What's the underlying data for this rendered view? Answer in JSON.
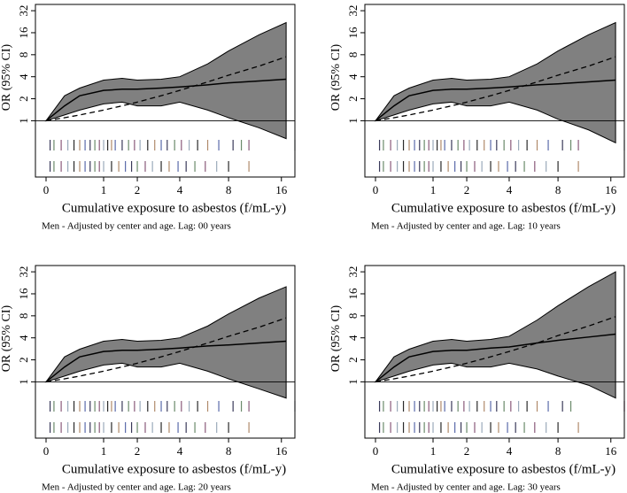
{
  "chart_data": [
    {
      "type": "spline",
      "title": "Men - Adjusted by center and age. Lag: 00 years",
      "xlabel": "Cumulative exposure to asbestos (f/mL-y)",
      "ylabel": "OR (95% CI)",
      "xscale": "log1p",
      "yscale": "log2",
      "xlim": [
        -0.12,
        19
      ],
      "ylim": [
        0.17,
        39
      ],
      "xticks": [
        0,
        1,
        2,
        4,
        8,
        16
      ],
      "yticks": [
        1,
        2,
        4,
        8,
        16,
        32
      ],
      "reference": 1,
      "x": [
        0,
        0.25,
        0.5,
        1,
        1.5,
        2,
        3,
        4,
        6,
        8,
        12,
        17
      ],
      "estimate": [
        1,
        1.6,
        2.2,
        2.6,
        2.7,
        2.7,
        2.8,
        2.9,
        3.1,
        3.3,
        3.5,
        3.7
      ],
      "ci_lower": [
        1,
        1.2,
        1.4,
        1.7,
        1.8,
        1.6,
        1.6,
        1.8,
        1.4,
        1.1,
        0.8,
        0.57
      ],
      "ci_upper": [
        1,
        2.2,
        2.8,
        3.6,
        3.8,
        3.6,
        3.7,
        4,
        6,
        9,
        15,
        22
      ],
      "linear": [
        1,
        1.1,
        1.2,
        1.4,
        1.6,
        1.8,
        2.2,
        2.6,
        3.4,
        4.2,
        5.6,
        7.5
      ],
      "rug": [
        [
          0.05,
          0.1,
          0.2,
          0.3,
          0.4,
          0.5,
          0.6,
          0.7,
          0.8,
          0.9,
          1,
          1.1,
          1.2,
          1.3,
          1.5,
          1.7,
          1.9,
          2.1,
          2.4,
          2.7,
          3,
          3.3,
          3.7,
          4.1,
          4.6,
          5.2,
          6,
          7,
          8.5,
          9.5,
          10.5,
          19
        ],
        [
          0.05,
          0.1,
          0.2,
          0.3,
          0.4,
          0.5,
          0.6,
          0.7,
          0.8,
          0.9,
          1,
          1.2,
          1.4,
          1.6,
          1.8,
          2,
          2.3,
          2.6,
          3,
          3.4,
          3.9,
          4.4,
          5,
          5.8,
          6.8,
          8,
          10.5
        ]
      ],
      "band_color": "#808080",
      "line_color": "#000000",
      "rug_colors": [
        "#3a3a5a",
        "#6a8a6a",
        "#8a5a7a",
        "#9aaaba",
        "#2a2a2a",
        "#b08a6a",
        "#5a6aaa"
      ]
    },
    {
      "type": "spline",
      "title": "Men - Adjusted by center and age. Lag: 10 years",
      "xlabel": "Cumulative exposure to asbestos (f/mL-y)",
      "ylabel": "OR (95% CI)",
      "xscale": "log1p",
      "yscale": "log2",
      "xlim": [
        -0.12,
        19
      ],
      "ylim": [
        0.17,
        39
      ],
      "xticks": [
        0,
        1,
        2,
        4,
        8,
        16
      ],
      "yticks": [
        1,
        2,
        4,
        8,
        16,
        32
      ],
      "reference": 1,
      "x": [
        0,
        0.25,
        0.5,
        1,
        1.5,
        2,
        3,
        4,
        6,
        8,
        12,
        17
      ],
      "estimate": [
        1,
        1.6,
        2.2,
        2.6,
        2.7,
        2.7,
        2.8,
        2.9,
        3.1,
        3.2,
        3.4,
        3.6
      ],
      "ci_lower": [
        1,
        1.2,
        1.4,
        1.7,
        1.8,
        1.6,
        1.6,
        1.8,
        1.4,
        1.05,
        0.75,
        0.5
      ],
      "ci_upper": [
        1,
        2.2,
        2.8,
        3.6,
        3.8,
        3.6,
        3.7,
        4,
        6,
        9,
        15,
        22
      ],
      "linear": [
        1,
        1.1,
        1.2,
        1.4,
        1.6,
        1.8,
        2.2,
        2.6,
        3.4,
        4.2,
        5.6,
        7.5
      ],
      "rug": [
        [
          0.05,
          0.1,
          0.2,
          0.3,
          0.4,
          0.5,
          0.6,
          0.7,
          0.8,
          0.9,
          1,
          1.1,
          1.2,
          1.3,
          1.5,
          1.7,
          1.9,
          2.1,
          2.4,
          2.7,
          3,
          3.3,
          3.7,
          4.1,
          4.6,
          5.2,
          6,
          7,
          8.5,
          9.5,
          10.5,
          19
        ],
        [
          0.05,
          0.1,
          0.2,
          0.3,
          0.4,
          0.5,
          0.6,
          0.7,
          0.8,
          0.9,
          1,
          1.2,
          1.4,
          1.6,
          1.8,
          2,
          2.3,
          2.6,
          3,
          3.4,
          3.9,
          4.4,
          5,
          5.8,
          6.8,
          8,
          10.5
        ]
      ],
      "band_color": "#808080",
      "line_color": "#000000",
      "rug_colors": [
        "#3a3a5a",
        "#6a8a6a",
        "#8a5a7a",
        "#9aaaba",
        "#2a2a2a",
        "#b08a6a",
        "#5a6aaa"
      ]
    },
    {
      "type": "spline",
      "title": "Men - Adjusted by center and age. Lag: 20 years",
      "xlabel": "Cumulative exposure to asbestos (f/mL-y)",
      "ylabel": "OR (95% CI)",
      "xscale": "log1p",
      "yscale": "log2",
      "xlim": [
        -0.12,
        19
      ],
      "ylim": [
        0.17,
        39
      ],
      "xticks": [
        0,
        1,
        2,
        4,
        8,
        16
      ],
      "yticks": [
        1,
        2,
        4,
        8,
        16,
        32
      ],
      "reference": 1,
      "x": [
        0,
        0.25,
        0.5,
        1,
        1.5,
        2,
        3,
        4,
        6,
        8,
        12,
        17
      ],
      "estimate": [
        1,
        1.6,
        2.2,
        2.6,
        2.7,
        2.7,
        2.8,
        2.9,
        3.1,
        3.2,
        3.4,
        3.6
      ],
      "ci_lower": [
        1,
        1.2,
        1.4,
        1.7,
        1.8,
        1.6,
        1.6,
        1.8,
        1.4,
        1.1,
        0.8,
        0.6
      ],
      "ci_upper": [
        1,
        2.2,
        2.8,
        3.6,
        3.8,
        3.6,
        3.7,
        4,
        5.8,
        8.5,
        14,
        20
      ],
      "linear": [
        1,
        1.1,
        1.2,
        1.4,
        1.6,
        1.8,
        2.2,
        2.6,
        3.4,
        4.2,
        5.6,
        7.5
      ],
      "rug": [
        [
          0.05,
          0.1,
          0.2,
          0.3,
          0.4,
          0.5,
          0.6,
          0.7,
          0.8,
          0.9,
          1,
          1.1,
          1.2,
          1.3,
          1.5,
          1.7,
          1.9,
          2.1,
          2.4,
          2.7,
          3,
          3.3,
          3.7,
          4.1,
          4.6,
          5.2,
          6,
          7,
          8.5,
          9.5,
          10.5,
          19
        ],
        [
          0.05,
          0.1,
          0.2,
          0.3,
          0.4,
          0.5,
          0.6,
          0.7,
          0.8,
          0.9,
          1,
          1.2,
          1.4,
          1.6,
          1.8,
          2,
          2.3,
          2.6,
          3,
          3.4,
          3.9,
          4.4,
          5,
          5.8,
          6.8,
          8,
          10.5
        ]
      ],
      "band_color": "#808080",
      "line_color": "#000000",
      "rug_colors": [
        "#3a3a5a",
        "#6a8a6a",
        "#8a5a7a",
        "#9aaaba",
        "#2a2a2a",
        "#b08a6a",
        "#5a6aaa"
      ]
    },
    {
      "type": "spline",
      "title": "Men - Adjusted by center and age. Lag: 30 years",
      "xlabel": "Cumulative exposure to asbestos (f/mL-y)",
      "ylabel": "OR (95% CI)",
      "xscale": "log1p",
      "yscale": "log2",
      "xlim": [
        -0.12,
        19
      ],
      "ylim": [
        0.17,
        39
      ],
      "xticks": [
        0,
        1,
        2,
        4,
        8,
        16
      ],
      "yticks": [
        1,
        2,
        4,
        8,
        16,
        32
      ],
      "reference": 1,
      "x": [
        0,
        0.25,
        0.5,
        1,
        1.5,
        2,
        3,
        4,
        6,
        8,
        12,
        17
      ],
      "estimate": [
        1,
        1.6,
        2.2,
        2.6,
        2.7,
        2.7,
        2.9,
        3,
        3.4,
        3.7,
        4.1,
        4.5
      ],
      "ci_lower": [
        1,
        1.2,
        1.4,
        1.7,
        1.8,
        1.6,
        1.6,
        1.8,
        1.5,
        1.2,
        0.9,
        0.6
      ],
      "ci_upper": [
        1,
        2.2,
        2.8,
        3.6,
        3.8,
        3.6,
        3.8,
        4.2,
        7,
        11,
        20,
        32
      ],
      "linear": [
        1,
        1.1,
        1.2,
        1.4,
        1.6,
        1.8,
        2.2,
        2.6,
        3.4,
        4.3,
        5.8,
        7.8
      ],
      "rug": [
        [
          0.05,
          0.1,
          0.2,
          0.3,
          0.4,
          0.5,
          0.6,
          0.7,
          0.8,
          0.9,
          1,
          1.1,
          1.2,
          1.3,
          1.5,
          1.7,
          1.9,
          2.1,
          2.4,
          2.7,
          3,
          3.3,
          3.7,
          4.1,
          4.6,
          5.2,
          6,
          7,
          8.5,
          9.5,
          19
        ],
        [
          0.05,
          0.1,
          0.2,
          0.3,
          0.4,
          0.5,
          0.6,
          0.7,
          0.8,
          0.9,
          1,
          1.2,
          1.4,
          1.6,
          1.8,
          2,
          2.3,
          2.6,
          3,
          3.4,
          3.9,
          4.4,
          5,
          5.8,
          6.8,
          8,
          10.5
        ]
      ],
      "band_color": "#808080",
      "line_color": "#000000",
      "rug_colors": [
        "#3a3a5a",
        "#6a8a6a",
        "#8a5a7a",
        "#9aaaba",
        "#2a2a2a",
        "#b08a6a",
        "#5a6aaa"
      ]
    }
  ]
}
